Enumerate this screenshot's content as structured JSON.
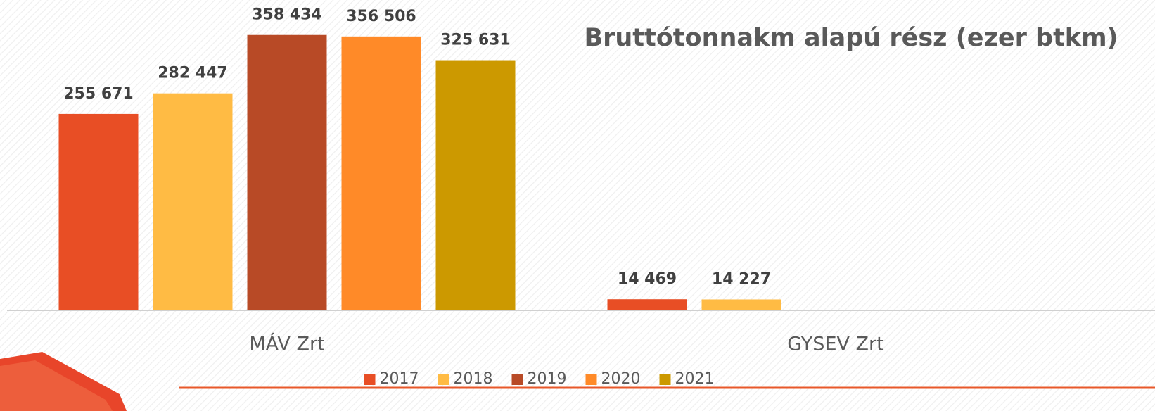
{
  "chart_data": {
    "type": "bar",
    "title": "Bruttótonnakm alapú rész (ezer btkm)",
    "categories": [
      "MÁV Zrt",
      "GYSEV Zrt"
    ],
    "series": [
      {
        "name": "2017",
        "color": "#e84e25",
        "values": [
          255671,
          14469
        ],
        "value_labels": [
          "255 671",
          "14 469"
        ]
      },
      {
        "name": "2018",
        "color": "#ffbb44",
        "values": [
          282447,
          14227
        ],
        "value_labels": [
          "282 447",
          "14 227"
        ]
      },
      {
        "name": "2019",
        "color": "#b84a26",
        "values": [
          358434,
          null
        ],
        "value_labels": [
          "358 434",
          null
        ]
      },
      {
        "name": "2020",
        "color": "#ff8a28",
        "values": [
          356506,
          null
        ],
        "value_labels": [
          "356 506",
          null
        ]
      },
      {
        "name": "2021",
        "color": "#cc9900",
        "values": [
          325631,
          null
        ],
        "value_labels": [
          "325 631",
          null
        ]
      }
    ],
    "ylim": [
      0,
      404000
    ],
    "legend": "bottom"
  }
}
